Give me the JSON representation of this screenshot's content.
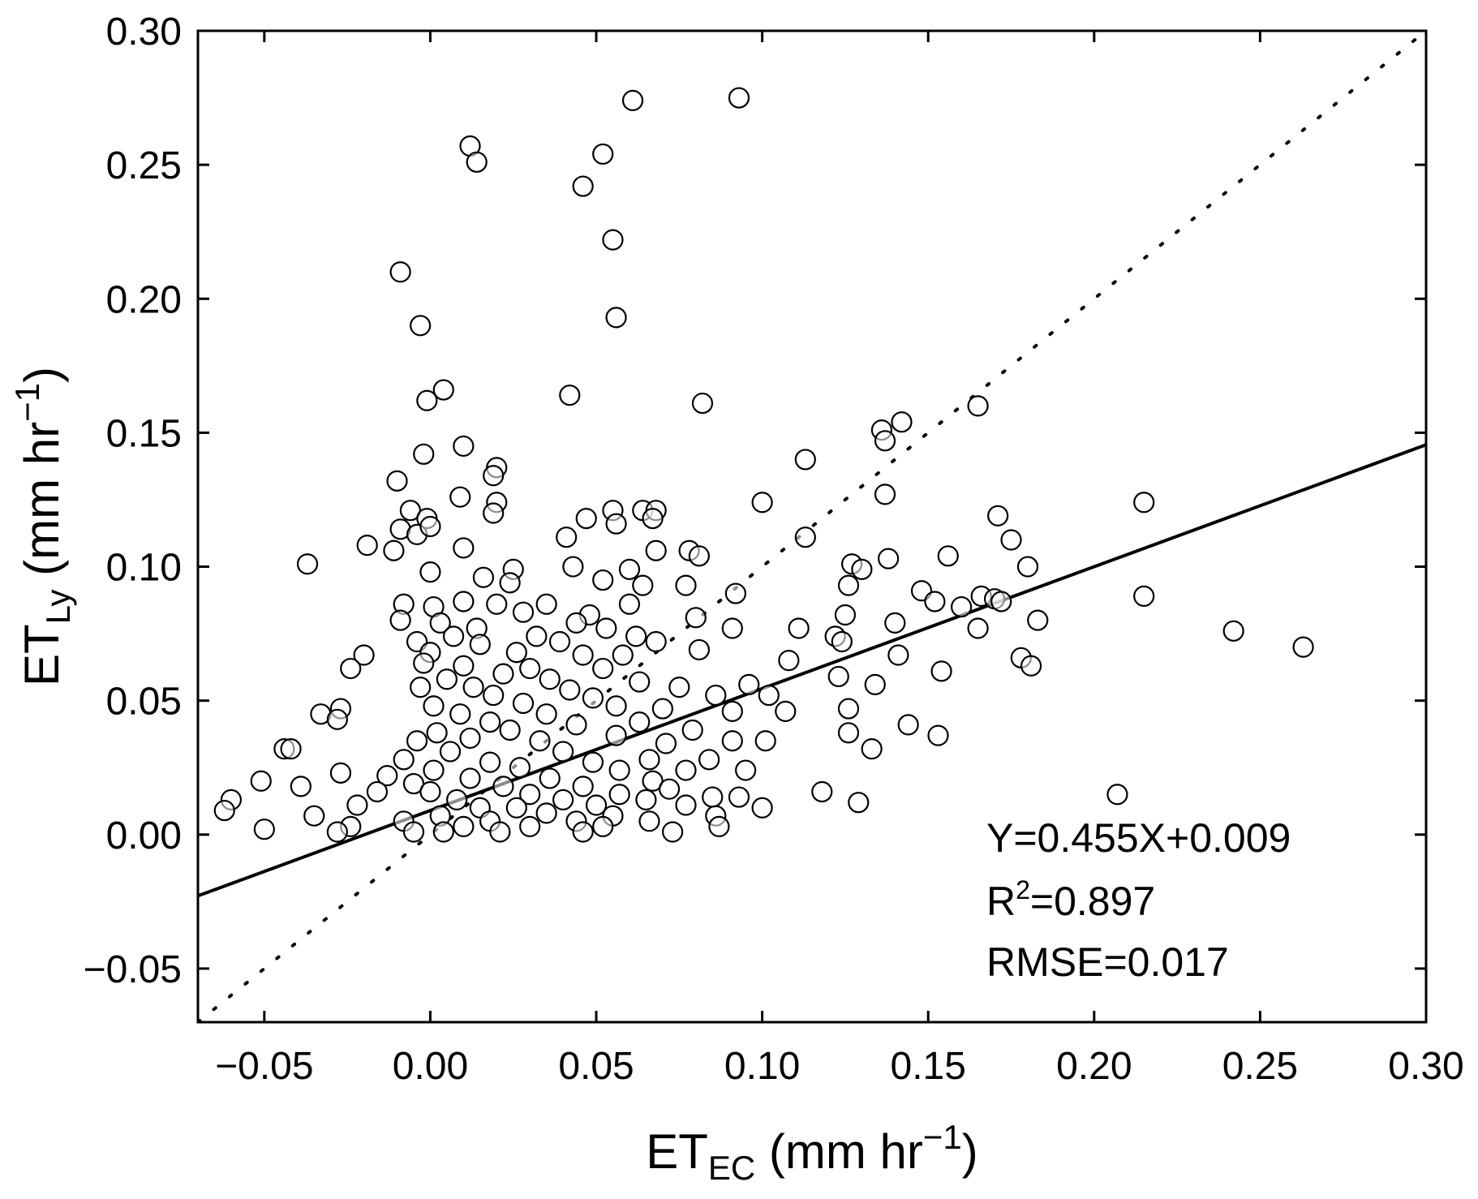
{
  "chart_data": {
    "type": "scatter",
    "title": "",
    "xlabel": {
      "main": "ET",
      "sub": "EC",
      "unit": " (mm hr",
      "unit_sup": "−1",
      "close": ")"
    },
    "ylabel": {
      "main": "ET",
      "sub": "Ly",
      "unit": " (mm hr",
      "unit_sup": "−1",
      "close": ")"
    },
    "xlim": [
      -0.07,
      0.3
    ],
    "ylim": [
      -0.07,
      0.3
    ],
    "xticks": [
      -0.05,
      0.0,
      0.05,
      0.1,
      0.15,
      0.2,
      0.25,
      0.3
    ],
    "xtick_labels": [
      "−0.05",
      "0.00",
      "0.05",
      "0.10",
      "0.15",
      "0.20",
      "0.25",
      "0.30"
    ],
    "yticks": [
      -0.05,
      0.0,
      0.05,
      0.1,
      0.15,
      0.2,
      0.25,
      0.3
    ],
    "ytick_labels": [
      "−0.05",
      "0.00",
      "0.05",
      "0.10",
      "0.15",
      "0.20",
      "0.25",
      "0.30"
    ],
    "fit_line": {
      "slope": 0.455,
      "intercept": 0.009,
      "style": "solid"
    },
    "one_to_one_line": {
      "slope": 1,
      "intercept": 0,
      "style": "dotted"
    },
    "annotations": {
      "equation": "Y=0.455X+0.009",
      "r2_prefix": "R",
      "r2_sup": "2",
      "r2_value": "=0.897",
      "rmse": "RMSE=0.017"
    },
    "marker": {
      "shape": "open-circle",
      "stroke": "#000000",
      "fill": "#ffffff"
    },
    "points": [
      [
        0.061,
        0.274
      ],
      [
        0.093,
        0.275
      ],
      [
        0.012,
        0.257
      ],
      [
        0.014,
        0.251
      ],
      [
        0.052,
        0.254
      ],
      [
        0.046,
        0.242
      ],
      [
        0.055,
        0.222
      ],
      [
        -0.009,
        0.21
      ],
      [
        0.056,
        0.193
      ],
      [
        -0.003,
        0.19
      ],
      [
        0.004,
        0.166
      ],
      [
        -0.001,
        0.162
      ],
      [
        0.042,
        0.164
      ],
      [
        0.082,
        0.161
      ],
      [
        0.165,
        0.16
      ],
      [
        0.142,
        0.154
      ],
      [
        0.136,
        0.151
      ],
      [
        0.137,
        0.147
      ],
      [
        0.01,
        0.145
      ],
      [
        -0.002,
        0.142
      ],
      [
        0.113,
        0.14
      ],
      [
        0.02,
        0.137
      ],
      [
        0.019,
        0.134
      ],
      [
        -0.01,
        0.132
      ],
      [
        0.137,
        0.127
      ],
      [
        0.009,
        0.126
      ],
      [
        0.02,
        0.124
      ],
      [
        0.1,
        0.124
      ],
      [
        0.215,
        0.124
      ],
      [
        0.019,
        0.12
      ],
      [
        0.055,
        0.121
      ],
      [
        0.064,
        0.121
      ],
      [
        0.068,
        0.121
      ],
      [
        -0.006,
        0.121
      ],
      [
        -0.001,
        0.118
      ],
      [
        0.047,
        0.118
      ],
      [
        0.067,
        0.118
      ],
      [
        0.171,
        0.119
      ],
      [
        0.056,
        0.116
      ],
      [
        -0.009,
        0.114
      ],
      [
        -0.004,
        0.112
      ],
      [
        0.0,
        0.115
      ],
      [
        0.041,
        0.111
      ],
      [
        0.113,
        0.111
      ],
      [
        0.175,
        0.11
      ],
      [
        -0.019,
        0.108
      ],
      [
        -0.011,
        0.106
      ],
      [
        0.01,
        0.107
      ],
      [
        0.068,
        0.106
      ],
      [
        0.078,
        0.106
      ],
      [
        0.156,
        0.104
      ],
      [
        0.081,
        0.104
      ],
      [
        0.138,
        0.103
      ],
      [
        -0.037,
        0.101
      ],
      [
        0.043,
        0.1
      ],
      [
        0.127,
        0.101
      ],
      [
        0.18,
        0.1
      ],
      [
        0.0,
        0.098
      ],
      [
        0.025,
        0.099
      ],
      [
        0.06,
        0.099
      ],
      [
        0.13,
        0.099
      ],
      [
        0.016,
        0.096
      ],
      [
        0.024,
        0.094
      ],
      [
        0.052,
        0.095
      ],
      [
        0.064,
        0.093
      ],
      [
        0.077,
        0.093
      ],
      [
        0.126,
        0.093
      ],
      [
        0.092,
        0.09
      ],
      [
        0.148,
        0.091
      ],
      [
        0.166,
        0.089
      ],
      [
        0.17,
        0.088
      ],
      [
        0.215,
        0.089
      ],
      [
        0.01,
        0.087
      ],
      [
        0.035,
        0.086
      ],
      [
        0.152,
        0.087
      ],
      [
        0.172,
        0.087
      ],
      [
        -0.008,
        0.086
      ],
      [
        0.001,
        0.085
      ],
      [
        0.02,
        0.086
      ],
      [
        0.06,
        0.086
      ],
      [
        0.16,
        0.085
      ],
      [
        0.028,
        0.083
      ],
      [
        0.048,
        0.082
      ],
      [
        0.08,
        0.081
      ],
      [
        0.125,
        0.082
      ],
      [
        -0.009,
        0.08
      ],
      [
        0.003,
        0.079
      ],
      [
        0.044,
        0.079
      ],
      [
        0.14,
        0.079
      ],
      [
        0.183,
        0.08
      ],
      [
        0.014,
        0.077
      ],
      [
        0.053,
        0.077
      ],
      [
        0.091,
        0.077
      ],
      [
        0.111,
        0.077
      ],
      [
        0.165,
        0.077
      ],
      [
        0.242,
        0.076
      ],
      [
        0.007,
        0.074
      ],
      [
        0.032,
        0.074
      ],
      [
        0.062,
        0.074
      ],
      [
        0.122,
        0.074
      ],
      [
        -0.004,
        0.072
      ],
      [
        0.015,
        0.071
      ],
      [
        0.039,
        0.072
      ],
      [
        0.068,
        0.072
      ],
      [
        0.124,
        0.072
      ],
      [
        0.263,
        0.07
      ],
      [
        -0.02,
        0.067
      ],
      [
        0.0,
        0.068
      ],
      [
        0.026,
        0.068
      ],
      [
        0.046,
        0.067
      ],
      [
        0.058,
        0.067
      ],
      [
        0.081,
        0.069
      ],
      [
        0.141,
        0.067
      ],
      [
        0.178,
        0.066
      ],
      [
        -0.024,
        0.062
      ],
      [
        -0.002,
        0.064
      ],
      [
        0.01,
        0.063
      ],
      [
        0.03,
        0.062
      ],
      [
        0.052,
        0.062
      ],
      [
        0.108,
        0.065
      ],
      [
        0.154,
        0.061
      ],
      [
        0.181,
        0.063
      ],
      [
        0.005,
        0.058
      ],
      [
        0.022,
        0.06
      ],
      [
        0.036,
        0.058
      ],
      [
        0.063,
        0.057
      ],
      [
        0.123,
        0.059
      ],
      [
        0.134,
        0.056
      ],
      [
        -0.003,
        0.055
      ],
      [
        0.013,
        0.055
      ],
      [
        0.042,
        0.054
      ],
      [
        0.075,
        0.055
      ],
      [
        0.096,
        0.056
      ],
      [
        0.019,
        0.052
      ],
      [
        0.049,
        0.051
      ],
      [
        0.086,
        0.052
      ],
      [
        0.102,
        0.052
      ],
      [
        0.001,
        0.048
      ],
      [
        0.028,
        0.049
      ],
      [
        0.056,
        0.048
      ],
      [
        0.07,
        0.047
      ],
      [
        0.126,
        0.047
      ],
      [
        -0.033,
        0.045
      ],
      [
        -0.027,
        0.047
      ],
      [
        0.009,
        0.045
      ],
      [
        0.035,
        0.045
      ],
      [
        0.091,
        0.046
      ],
      [
        0.107,
        0.046
      ],
      [
        -0.028,
        0.043
      ],
      [
        0.018,
        0.042
      ],
      [
        0.044,
        0.041
      ],
      [
        0.063,
        0.042
      ],
      [
        0.144,
        0.041
      ],
      [
        0.002,
        0.038
      ],
      [
        0.024,
        0.039
      ],
      [
        0.056,
        0.037
      ],
      [
        0.079,
        0.039
      ],
      [
        0.126,
        0.038
      ],
      [
        0.153,
        0.037
      ],
      [
        -0.004,
        0.035
      ],
      [
        0.012,
        0.036
      ],
      [
        0.033,
        0.035
      ],
      [
        0.071,
        0.034
      ],
      [
        0.091,
        0.035
      ],
      [
        0.101,
        0.035
      ],
      [
        -0.044,
        0.032
      ],
      [
        -0.042,
        0.032
      ],
      [
        0.006,
        0.031
      ],
      [
        0.04,
        0.031
      ],
      [
        0.133,
        0.032
      ],
      [
        -0.008,
        0.028
      ],
      [
        0.018,
        0.027
      ],
      [
        0.049,
        0.027
      ],
      [
        0.066,
        0.028
      ],
      [
        0.084,
        0.028
      ],
      [
        0.001,
        0.024
      ],
      [
        0.027,
        0.025
      ],
      [
        0.057,
        0.024
      ],
      [
        0.077,
        0.024
      ],
      [
        0.095,
        0.024
      ],
      [
        -0.027,
        0.023
      ],
      [
        -0.013,
        0.022
      ],
      [
        0.012,
        0.021
      ],
      [
        0.036,
        0.021
      ],
      [
        0.067,
        0.02
      ],
      [
        -0.051,
        0.02
      ],
      [
        -0.005,
        0.019
      ],
      [
        0.022,
        0.018
      ],
      [
        0.046,
        0.018
      ],
      [
        0.072,
        0.017
      ],
      [
        -0.039,
        0.018
      ],
      [
        -0.016,
        0.016
      ],
      [
        0.0,
        0.016
      ],
      [
        0.03,
        0.015
      ],
      [
        0.057,
        0.015
      ],
      [
        0.118,
        0.016
      ],
      [
        0.207,
        0.015
      ],
      [
        -0.06,
        0.013
      ],
      [
        0.008,
        0.013
      ],
      [
        0.04,
        0.013
      ],
      [
        0.065,
        0.013
      ],
      [
        0.085,
        0.014
      ],
      [
        0.093,
        0.014
      ],
      [
        0.129,
        0.012
      ],
      [
        -0.022,
        0.011
      ],
      [
        0.015,
        0.01
      ],
      [
        0.026,
        0.01
      ],
      [
        0.05,
        0.011
      ],
      [
        0.077,
        0.011
      ],
      [
        0.1,
        0.01
      ],
      [
        -0.062,
        0.009
      ],
      [
        -0.035,
        0.007
      ],
      [
        0.003,
        0.007
      ],
      [
        0.035,
        0.008
      ],
      [
        0.055,
        0.007
      ],
      [
        0.086,
        0.007
      ],
      [
        -0.008,
        0.005
      ],
      [
        0.018,
        0.005
      ],
      [
        0.044,
        0.005
      ],
      [
        0.066,
        0.005
      ],
      [
        -0.024,
        0.003
      ],
      [
        0.01,
        0.003
      ],
      [
        0.03,
        0.003
      ],
      [
        0.052,
        0.003
      ],
      [
        0.087,
        0.003
      ],
      [
        -0.05,
        0.002
      ],
      [
        -0.028,
        0.001
      ],
      [
        -0.005,
        0.001
      ],
      [
        0.004,
        0.001
      ],
      [
        0.021,
        0.001
      ],
      [
        0.046,
        0.001
      ],
      [
        0.073,
        0.001
      ]
    ]
  }
}
